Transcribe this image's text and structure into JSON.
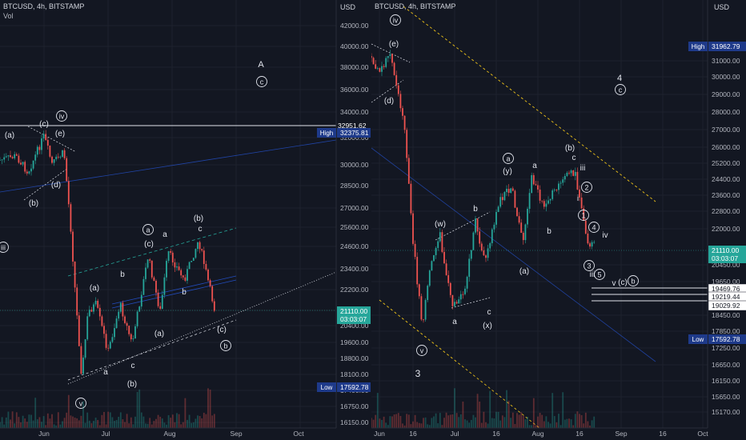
{
  "charts": [
    {
      "header": "BTCUSD, 4h, BITSTAMP",
      "vol_label": "Vol",
      "axis_unit": "USD",
      "price_ticks": [
        "42000.00",
        "40000.00",
        "38000.00",
        "36000.00",
        "34000.00",
        "32000.00",
        "30000.00",
        "28500.00",
        "27000.00",
        "25600.00",
        "24600.00",
        "23400.00",
        "22200.00",
        "21100.00",
        "20400.00",
        "19600.00",
        "18800.00",
        "18100.00",
        "17400.00",
        "16750.00",
        "16150.00"
      ],
      "time_ticks": [
        "Jun",
        "Jul",
        "Aug",
        "Sep",
        "Oct"
      ],
      "badges": [
        {
          "label": "High",
          "value": "32375.81",
          "value2": "",
          "color": "#1e3a8a"
        },
        {
          "label": "",
          "value": "21110.00",
          "value2": "03:03:07",
          "color": "#26a69a"
        },
        {
          "label": "Low",
          "value": "17592.78",
          "value2": "",
          "color": "#1e3a8a"
        }
      ],
      "level_label": "32951.62",
      "wave_labels": [
        "A",
        "(c)",
        "(c)",
        "(e)",
        "(a)",
        "(d)",
        "(b)",
        "iii",
        "(v)",
        "(a)",
        "b",
        "(c)",
        "a",
        "(b)",
        "c",
        "b",
        "(a)",
        "(c)",
        "a",
        "c",
        "(b)",
        "(b)",
        "(iv)"
      ],
      "circled": [
        "c",
        "iv",
        "iii",
        "a",
        "b",
        "v"
      ]
    },
    {
      "header": "BTCUSD, 4h, BITSTAMP",
      "vol_label": "",
      "axis_unit": "USD",
      "price_ticks": [
        "31000.00",
        "30000.00",
        "29000.00",
        "28000.00",
        "27000.00",
        "26000.00",
        "25200.00",
        "24400.00",
        "23600.00",
        "22800.00",
        "22000.00",
        "20450.00",
        "19650.00",
        "18450.00",
        "17850.00",
        "17250.00",
        "16650.00",
        "16150.00",
        "15650.00",
        "15170.00"
      ],
      "time_ticks": [
        "Jun",
        "16",
        "Jul",
        "16",
        "Aug",
        "16",
        "Sep",
        "16",
        "Oct"
      ],
      "badges": [
        {
          "label": "High",
          "value": "31962.79",
          "value2": "",
          "color": "#1e3a8a"
        },
        {
          "label": "",
          "value": "21110.00",
          "value2": "03:03:07",
          "color": "#26a69a"
        },
        {
          "label": "",
          "value": "19469.76",
          "value2": "",
          "color": "#ffffff"
        },
        {
          "label": "",
          "value": "19219.44",
          "value2": "",
          "color": "#ffffff"
        },
        {
          "label": "",
          "value": "19029.92",
          "value2": "",
          "color": "#ffffff"
        },
        {
          "label": "Low",
          "value": "17592.78",
          "value2": "",
          "color": "#1e3a8a"
        }
      ],
      "wave_labels": [
        "4",
        "(e)",
        "(d)",
        "(y)",
        "a",
        "(b)",
        "c",
        "iii",
        "(w)",
        "b",
        "i",
        "iv",
        "b",
        "(a)",
        "c",
        "a",
        "(x)",
        "3",
        "iii",
        "v",
        "(c)"
      ],
      "circled": [
        "iv",
        "c",
        "a",
        "2",
        "1",
        "4",
        "3",
        "5",
        "b",
        "v"
      ]
    }
  ]
}
